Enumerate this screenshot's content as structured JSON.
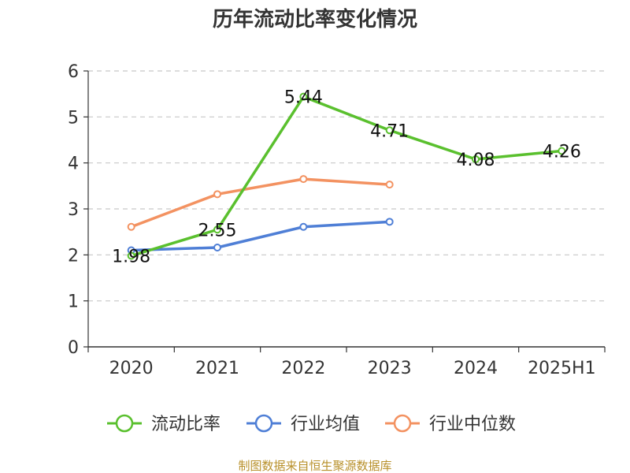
{
  "chart_data": {
    "type": "line",
    "title": "历年流动比率变化情况",
    "categories": [
      "2020",
      "2021",
      "2022",
      "2023",
      "2024",
      "2025H1"
    ],
    "ylim": [
      0,
      6
    ],
    "yticks": [
      "0",
      "1",
      "2",
      "3",
      "4",
      "5",
      "6"
    ],
    "grid": true,
    "legend_position": "bottom",
    "series": [
      {
        "name": "流动比率",
        "color": "#5ac02e",
        "values": [
          1.98,
          2.55,
          5.44,
          4.71,
          4.08,
          4.26
        ],
        "labels": [
          "1.98",
          "2.55",
          "5.44",
          "4.71",
          "4.08",
          "4.26"
        ]
      },
      {
        "name": "行业均值",
        "color": "#4f7fd6",
        "values": [
          2.1,
          2.16,
          2.61,
          2.72,
          null,
          null
        ]
      },
      {
        "name": "行业中位数",
        "color": "#f39261",
        "values": [
          2.61,
          3.32,
          3.65,
          3.53,
          null,
          null
        ]
      }
    ]
  },
  "footer": {
    "source": "制图数据来自恒生聚源数据库"
  }
}
